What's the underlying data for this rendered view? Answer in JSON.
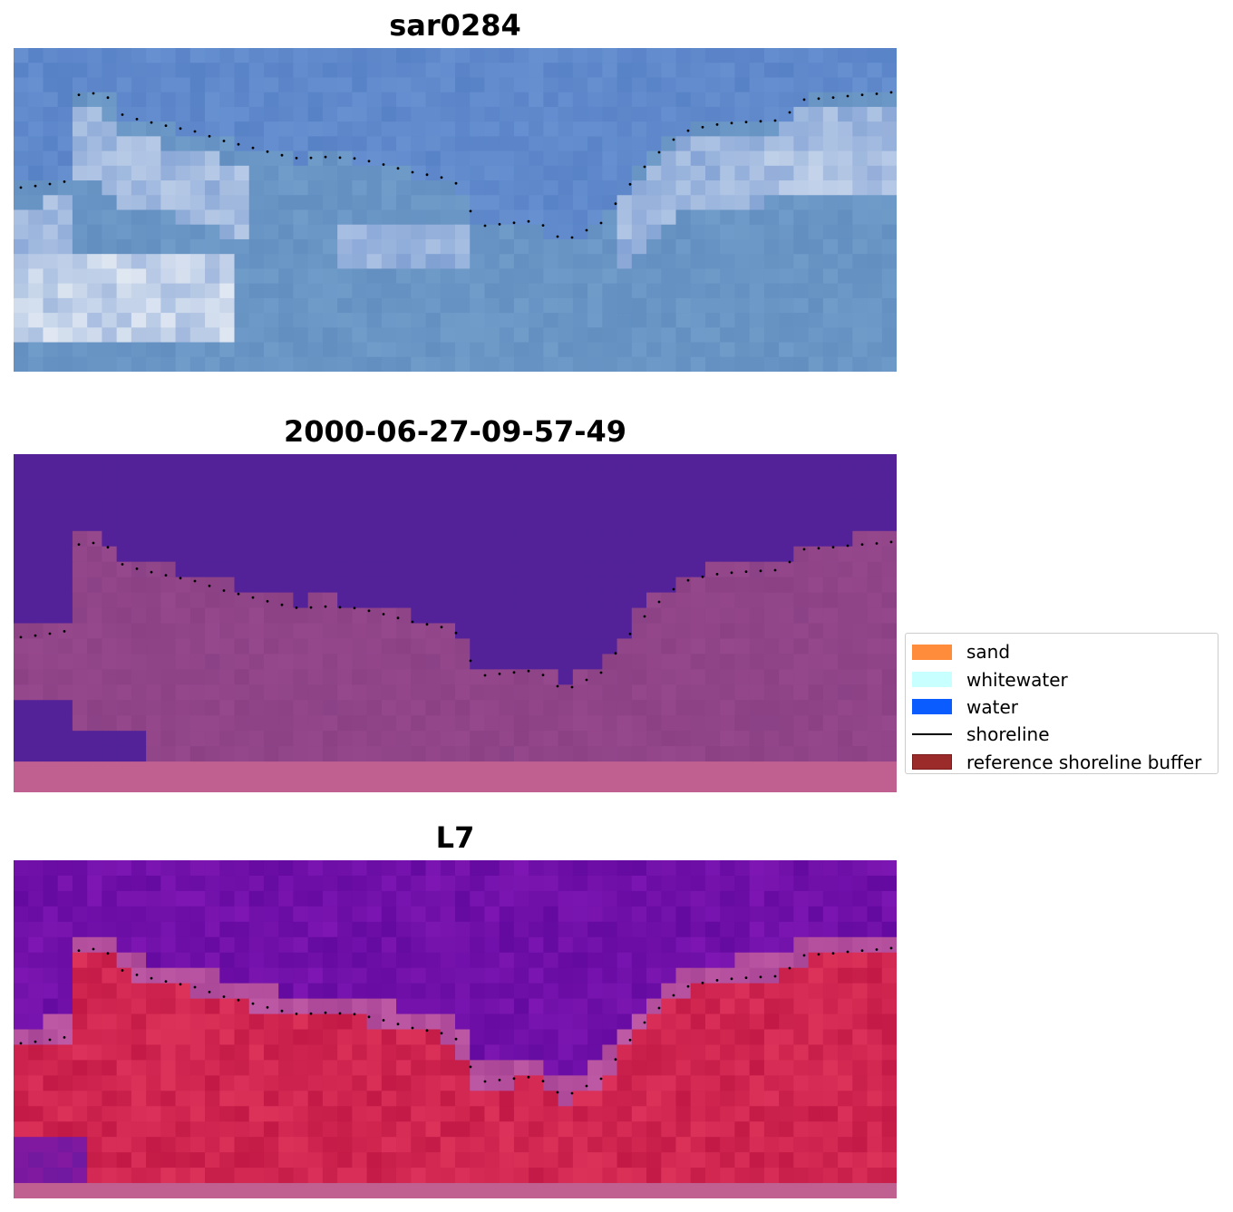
{
  "panels": [
    {
      "title": "sar0284",
      "kind": "rgb"
    },
    {
      "title": "2000-06-27-09-57-49",
      "kind": "classified"
    },
    {
      "title": "L7",
      "kind": "index"
    }
  ],
  "legend": {
    "items": [
      {
        "label": "sand",
        "type": "patch",
        "color": "#ff8c3a"
      },
      {
        "label": "whitewater",
        "type": "patch",
        "color": "#c8ffff"
      },
      {
        "label": "water",
        "type": "patch",
        "color": "#0a5cff"
      },
      {
        "label": "shoreline",
        "type": "line",
        "color": "#000000"
      },
      {
        "label": "reference shoreline buffer",
        "type": "patch",
        "color": "#9b2a2a",
        "edge": "#7a1a1a"
      }
    ]
  },
  "colors": {
    "rgb_water": "#5a86c8",
    "rgb_foam": "#dfe7f3",
    "class_water": "#532299",
    "class_land": "#a05090",
    "index_water": "#6b1aa0",
    "index_land": "#c8204a",
    "buffer_strip": "#c06090"
  }
}
